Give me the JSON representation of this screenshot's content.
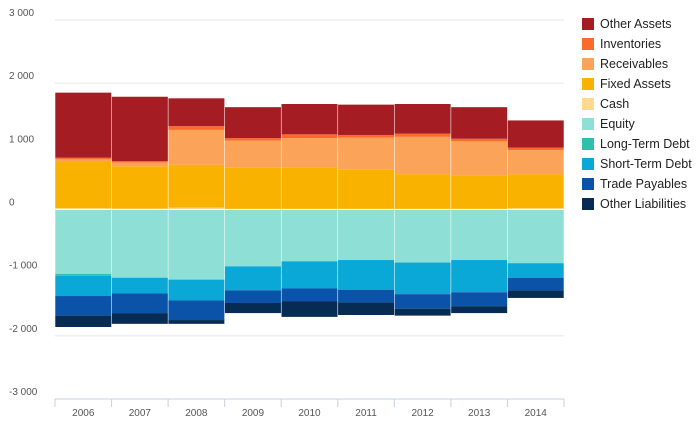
{
  "chart_data": {
    "type": "bar",
    "stacked": true,
    "categories": [
      "2006",
      "2007",
      "2008",
      "2009",
      "2010",
      "2011",
      "2012",
      "2013",
      "2014"
    ],
    "ylim": [
      -3000,
      3000
    ],
    "yticks": [
      3000,
      2000,
      1000,
      0,
      -1000,
      -2000,
      -3000
    ],
    "ytick_labels": [
      "3 000",
      "2 000",
      "1 000",
      "0",
      "-1 000",
      "-2 000",
      "-3 000"
    ],
    "grid": true,
    "legend_position": "right",
    "title": "",
    "xlabel": "",
    "ylabel": "",
    "positive_series": [
      {
        "name": "Cash",
        "color": "#fdd98f",
        "values": [
          20,
          15,
          30,
          10,
          10,
          10,
          10,
          10,
          20
        ]
      },
      {
        "name": "Fixed Assets",
        "color": "#f9b200",
        "values": [
          740,
          670,
          680,
          650,
          660,
          620,
          550,
          530,
          540
        ]
      },
      {
        "name": "Receivables",
        "color": "#fca35a",
        "values": [
          40,
          60,
          550,
          430,
          460,
          510,
          590,
          540,
          380
        ]
      },
      {
        "name": "Inventories",
        "color": "#fa6a2d",
        "values": [
          20,
          20,
          60,
          40,
          60,
          40,
          50,
          40,
          40
        ]
      },
      {
        "name": "Other Assets",
        "color": "#a61c23",
        "values": [
          1030,
          1020,
          440,
          490,
          480,
          480,
          470,
          500,
          430
        ]
      }
    ],
    "negative_series": [
      {
        "name": "Equity",
        "color": "#8edfd6",
        "values": [
          1020,
          1080,
          1110,
          900,
          820,
          800,
          840,
          800,
          850
        ]
      },
      {
        "name": "Long-Term Debt",
        "color": "#2fbfad",
        "values": [
          30,
          0,
          0,
          0,
          0,
          0,
          0,
          0,
          0
        ]
      },
      {
        "name": "Short-Term Debt",
        "color": "#0aa8d6",
        "values": [
          320,
          250,
          330,
          380,
          430,
          470,
          500,
          510,
          230
        ]
      },
      {
        "name": "Trade Payables",
        "color": "#0a53a8",
        "values": [
          310,
          310,
          310,
          200,
          200,
          200,
          230,
          220,
          200
        ]
      },
      {
        "name": "Other Liabilities",
        "color": "#072c54",
        "values": [
          180,
          170,
          60,
          160,
          250,
          200,
          110,
          110,
          120
        ]
      }
    ],
    "legend": [
      {
        "name": "Other Assets",
        "color": "#a61c23"
      },
      {
        "name": "Inventories",
        "color": "#fa6a2d"
      },
      {
        "name": "Receivables",
        "color": "#fca35a"
      },
      {
        "name": "Fixed Assets",
        "color": "#f9b200"
      },
      {
        "name": "Cash",
        "color": "#fdd98f"
      },
      {
        "name": "Equity",
        "color": "#8edfd6"
      },
      {
        "name": "Long-Term Debt",
        "color": "#2fbfad"
      },
      {
        "name": "Short-Term Debt",
        "color": "#0aa8d6"
      },
      {
        "name": "Trade Payables",
        "color": "#0a53a8"
      },
      {
        "name": "Other Liabilities",
        "color": "#072c54"
      }
    ]
  }
}
